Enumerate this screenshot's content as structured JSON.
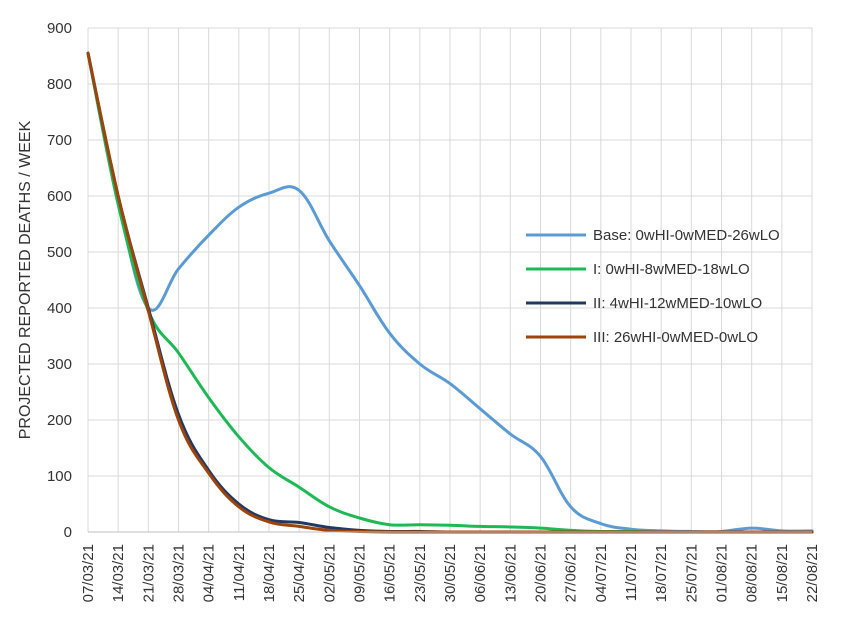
{
  "chart_data": {
    "type": "line",
    "title": "",
    "xlabel": "",
    "ylabel": "PROJECTED REPORTED DEATHS / WEEK",
    "ylim": [
      0,
      900
    ],
    "yticks": [
      0,
      100,
      200,
      300,
      400,
      500,
      600,
      700,
      800,
      900
    ],
    "categories": [
      "07/03/21",
      "14/03/21",
      "21/03/21",
      "28/03/21",
      "04/04/21",
      "11/04/21",
      "18/04/21",
      "25/04/21",
      "02/05/21",
      "09/05/21",
      "16/05/21",
      "23/05/21",
      "30/05/21",
      "06/06/21",
      "13/06/21",
      "20/06/21",
      "27/06/21",
      "04/07/21",
      "11/07/21",
      "18/07/21",
      "25/07/21",
      "01/08/21",
      "08/08/21",
      "15/08/21",
      "22/08/21"
    ],
    "grid": "both",
    "legend_position": "right",
    "series": [
      {
        "name": "Base: 0wHI-0wMED-26wLO",
        "color": "#5b9bd5",
        "values": [
          855,
          590,
          400,
          470,
          530,
          580,
          605,
          610,
          520,
          440,
          355,
          300,
          265,
          220,
          175,
          135,
          45,
          15,
          5,
          2,
          1,
          1,
          7,
          2,
          2
        ]
      },
      {
        "name": "I: 0wHI-8wMED-18wLO",
        "color": "#1db954",
        "values": [
          855,
          585,
          395,
          320,
          240,
          170,
          115,
          80,
          45,
          25,
          13,
          13,
          12,
          10,
          9,
          7,
          3,
          1,
          1,
          0,
          0,
          0,
          0,
          0,
          0
        ]
      },
      {
        "name": "II: 4wHI-12wMED-10wLO",
        "color": "#203864",
        "values": [
          855,
          600,
          400,
          210,
          110,
          50,
          22,
          17,
          8,
          3,
          1,
          1,
          0,
          0,
          0,
          0,
          0,
          0,
          0,
          0,
          0,
          0,
          0,
          0,
          0
        ]
      },
      {
        "name": "III: 26wHI-0wMED-0wLO",
        "color": "#a0430a",
        "values": [
          855,
          600,
          395,
          200,
          105,
          45,
          18,
          10,
          3,
          1,
          0,
          0,
          0,
          0,
          0,
          0,
          0,
          0,
          0,
          0,
          0,
          0,
          0,
          0,
          0
        ]
      }
    ]
  }
}
